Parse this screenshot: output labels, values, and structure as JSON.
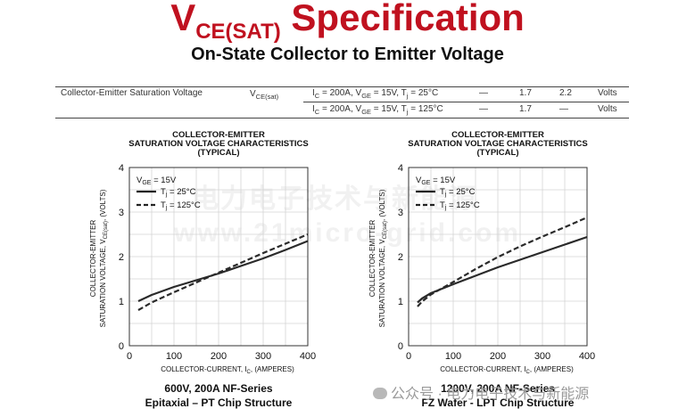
{
  "header": {
    "title_main": "V",
    "title_sub": "CE(SAT)",
    "title_rest": " Specification",
    "subtitle": "On-State Collector to Emitter Voltage"
  },
  "spec_table": {
    "param": "Collector-Emitter Saturation Voltage",
    "symbol_main": "V",
    "symbol_sub": "CE(sat)",
    "rows": [
      {
        "cond_ic": "I",
        "cond_ic_sub": "C",
        "cond_a": " = 200A, V",
        "cond_vge_sub": "GE",
        "cond_b": " = 15V, T",
        "cond_tj_sub": "j",
        "cond_c": " = 25°C",
        "min": "—",
        "typ": "1.7",
        "max": "2.2",
        "unit": "Volts"
      },
      {
        "cond_ic": "I",
        "cond_ic_sub": "C",
        "cond_a": " = 200A, V",
        "cond_vge_sub": "GE",
        "cond_b": " = 15V, T",
        "cond_tj_sub": "j",
        "cond_c": " = 125°C",
        "min": "—",
        "typ": "1.7",
        "max": "—",
        "unit": "Volts"
      }
    ]
  },
  "watermark": {
    "cn": "电力电子技术与新能源",
    "url": "www.21micro-grid.com"
  },
  "footer_watermark": "公众号 · 电力电子技术与新能源",
  "charts": [
    {
      "title": [
        "COLLECTOR-EMITTER",
        "SATURATION VOLTAGE CHARACTERISTICS",
        "(TYPICAL)"
      ],
      "legend_vge_main": "V",
      "legend_vge_sub": "GE",
      "legend_vge_rest": " = 15V",
      "legend_t1_main": "T",
      "legend_t1_sub": "j",
      "legend_t1_rest": " = 25°C",
      "legend_t2_main": "T",
      "legend_t2_sub": "j",
      "legend_t2_rest": " = 125°C",
      "ylabel_1": "COLLECTOR-EMITTER",
      "ylabel_2a": "SATURATION VOLTAGE, V",
      "ylabel_2sub": "CE(sat)",
      "ylabel_2b": ", (VOLTS)",
      "xlabel_a": "COLLECTOR-CURRENT, I",
      "xlabel_sub": "C",
      "xlabel_b": ", (AMPERES)",
      "caption": [
        "600V, 200A NF-Series",
        "Epitaxial – PT Chip Structure"
      ]
    },
    {
      "title": [
        "COLLECTOR-EMITTER",
        "SATURATION VOLTAGE CHARACTERISTICS",
        "(TYPICAL)"
      ],
      "legend_vge_main": "V",
      "legend_vge_sub": "GE",
      "legend_vge_rest": " = 15V",
      "legend_t1_main": "T",
      "legend_t1_sub": "j",
      "legend_t1_rest": " = 25°C",
      "legend_t2_main": "T",
      "legend_t2_sub": "j",
      "legend_t2_rest": " = 125°C",
      "ylabel_1": "COLLECTOR-EMITTER",
      "ylabel_2a": "SATURATION VOLTAGE, V",
      "ylabel_2sub": "CE(sat)",
      "ylabel_2b": ", (VOLTS)",
      "xlabel_a": "COLLECTOR-CURRENT, I",
      "xlabel_sub": "C",
      "xlabel_b": ", (AMPERES)",
      "caption": [
        "1200V, 200A NF-Series",
        "FZ Wafer - LPT Chip Structure"
      ]
    }
  ],
  "chart_data": [
    {
      "type": "line",
      "title": "COLLECTOR-EMITTER SATURATION VOLTAGE CHARACTERISTICS (TYPICAL)",
      "xlabel": "COLLECTOR-CURRENT, IC, (AMPERES)",
      "ylabel": "COLLECTOR-EMITTER SATURATION VOLTAGE, VCE(sat), (VOLTS)",
      "xlim": [
        0,
        400
      ],
      "ylim": [
        0,
        4
      ],
      "xticks": [
        0,
        100,
        200,
        300,
        400
      ],
      "yticks": [
        0,
        1,
        2,
        3,
        4
      ],
      "grid": true,
      "legend": "top-left",
      "series": [
        {
          "name": "Tj = 25°C",
          "style": "solid",
          "x": [
            20,
            50,
            100,
            150,
            200,
            250,
            300,
            350,
            400
          ],
          "y": [
            1.0,
            1.14,
            1.32,
            1.47,
            1.62,
            1.79,
            1.96,
            2.15,
            2.35
          ]
        },
        {
          "name": "Tj = 125°C",
          "style": "dashed",
          "x": [
            20,
            50,
            100,
            150,
            200,
            250,
            300,
            350,
            400
          ],
          "y": [
            0.8,
            0.97,
            1.2,
            1.42,
            1.64,
            1.86,
            2.08,
            2.29,
            2.5
          ]
        }
      ]
    },
    {
      "type": "line",
      "title": "COLLECTOR-EMITTER SATURATION VOLTAGE CHARACTERISTICS (TYPICAL)",
      "xlabel": "COLLECTOR-CURRENT, IC, (AMPERES)",
      "ylabel": "COLLECTOR-EMITTER SATURATION VOLTAGE, VCE(sat), (VOLTS)",
      "xlim": [
        0,
        400
      ],
      "ylim": [
        0,
        4
      ],
      "xticks": [
        0,
        100,
        200,
        300,
        400
      ],
      "yticks": [
        0,
        1,
        2,
        3,
        4
      ],
      "grid": true,
      "legend": "top-left",
      "series": [
        {
          "name": "Tj = 25°C",
          "style": "solid",
          "x": [
            20,
            30,
            50,
            100,
            150,
            200,
            250,
            300,
            350,
            400
          ],
          "y": [
            0.97,
            1.06,
            1.18,
            1.38,
            1.57,
            1.76,
            1.93,
            2.1,
            2.27,
            2.44
          ]
        },
        {
          "name": "Tj = 125°C",
          "style": "dashed",
          "x": [
            20,
            30,
            50,
            100,
            150,
            200,
            250,
            300,
            350,
            400
          ],
          "y": [
            0.88,
            0.99,
            1.15,
            1.43,
            1.72,
            1.99,
            2.23,
            2.45,
            2.66,
            2.88
          ]
        }
      ]
    }
  ]
}
